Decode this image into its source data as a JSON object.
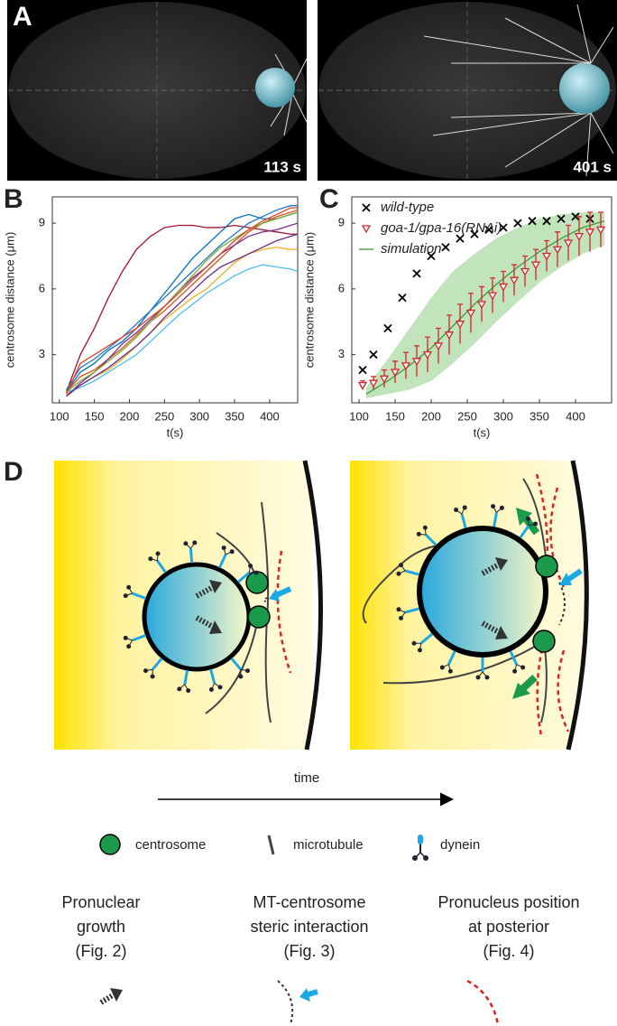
{
  "panels": {
    "a": "A",
    "b": "B",
    "c": "C",
    "d": "D"
  },
  "panel_a": {
    "timestamps": [
      "113 s",
      "401 s"
    ]
  },
  "chart_data": [
    {
      "type": "line",
      "x_label": "t(s)",
      "y_label": "centrosome distance (μm)",
      "x": [
        110,
        130,
        150,
        170,
        190,
        210,
        230,
        250,
        270,
        290,
        310,
        330,
        350,
        370,
        390,
        410,
        430,
        440
      ],
      "series": [
        {
          "color": "#a2142f",
          "values": [
            1.3,
            3.0,
            4.2,
            5.6,
            6.8,
            7.8,
            8.4,
            8.8,
            8.9,
            8.9,
            8.8,
            8.8,
            8.9,
            8.8,
            8.7,
            8.6,
            8.5,
            8.5
          ]
        },
        {
          "color": "#0072bd",
          "values": [
            1.3,
            2.2,
            2.6,
            3.2,
            3.6,
            4.2,
            5.0,
            5.8,
            6.6,
            7.4,
            8.0,
            8.6,
            9.2,
            9.4,
            9.2,
            9.2,
            9.4,
            9.5
          ]
        },
        {
          "color": "#d95319",
          "values": [
            1.3,
            2.0,
            2.3,
            2.8,
            3.3,
            3.9,
            4.5,
            5.0,
            5.6,
            6.2,
            6.8,
            7.4,
            8.0,
            8.6,
            9.0,
            9.3,
            9.5,
            9.6
          ]
        },
        {
          "color": "#edb120",
          "values": [
            1.2,
            1.6,
            2.0,
            2.3,
            2.8,
            3.4,
            4.0,
            4.6,
            5.1,
            5.6,
            6.0,
            6.6,
            7.2,
            7.6,
            7.8,
            7.9,
            7.8,
            7.8
          ]
        },
        {
          "color": "#7e2f8e",
          "values": [
            1.1,
            1.7,
            2.2,
            2.8,
            3.5,
            4.0,
            4.6,
            5.2,
            5.9,
            6.5,
            7.0,
            7.6,
            8.0,
            8.4,
            8.6,
            8.7,
            8.9,
            9.0
          ]
        },
        {
          "color": "#77ac30",
          "values": [
            1.3,
            1.8,
            2.2,
            2.7,
            3.2,
            3.8,
            4.5,
            5.2,
            5.9,
            6.6,
            7.3,
            7.9,
            8.3,
            8.7,
            9.0,
            9.2,
            9.4,
            9.5
          ]
        },
        {
          "color": "#4dbeee",
          "values": [
            1.3,
            1.5,
            1.8,
            2.2,
            2.6,
            3.0,
            3.6,
            4.2,
            4.8,
            5.3,
            5.8,
            6.2,
            6.6,
            6.9,
            7.1,
            7.0,
            6.9,
            6.8
          ]
        },
        {
          "color": "#1f77c4",
          "values": [
            1.4,
            2.4,
            2.8,
            3.3,
            3.8,
            4.4,
            5.0,
            5.6,
            6.2,
            6.8,
            7.4,
            8.0,
            8.5,
            9.0,
            9.3,
            9.6,
            9.8,
            9.8
          ]
        },
        {
          "color": "#e0402a",
          "values": [
            1.2,
            2.6,
            3.0,
            3.4,
            3.8,
            4.2,
            4.7,
            5.2,
            5.8,
            6.4,
            7.0,
            7.6,
            8.2,
            8.7,
            9.1,
            9.4,
            9.7,
            9.7
          ]
        },
        {
          "color": "#6a2a8a",
          "values": [
            1.1,
            1.6,
            2.0,
            2.4,
            2.9,
            3.4,
            4.0,
            4.7,
            5.3,
            5.9,
            6.5,
            7.0,
            7.3,
            7.6,
            7.9,
            8.2,
            8.4,
            8.5
          ]
        }
      ],
      "xlim": [
        90,
        440
      ],
      "ylim": [
        0.8,
        10.2
      ],
      "xticks": [
        100,
        150,
        200,
        250,
        300,
        350,
        400
      ],
      "yticks": [
        3,
        6,
        9
      ]
    },
    {
      "type": "scatter",
      "x_label": "t(s)",
      "y_label": "centrosome distance (μm)",
      "legend": "upper left",
      "series": [
        {
          "name": "wild-type",
          "color": "#000000",
          "marker": "x",
          "x": [
            105,
            120,
            140,
            160,
            180,
            200,
            220,
            240,
            260,
            280,
            300,
            320,
            340,
            360,
            380,
            400,
            420
          ],
          "values": [
            2.3,
            3.0,
            4.2,
            5.6,
            6.7,
            7.5,
            7.9,
            8.3,
            8.5,
            8.7,
            8.8,
            9.0,
            9.1,
            9.1,
            9.2,
            9.3,
            9.2
          ]
        },
        {
          "name": "goa-1/gpa-16(RNAi)",
          "color": "#d62728",
          "marker": "triangle-down",
          "x": [
            105,
            120,
            135,
            150,
            165,
            180,
            195,
            210,
            225,
            240,
            255,
            270,
            285,
            300,
            315,
            330,
            345,
            360,
            375,
            390,
            405,
            420,
            435
          ],
          "values": [
            1.6,
            1.7,
            1.9,
            2.2,
            2.5,
            2.7,
            3.0,
            3.4,
            3.9,
            4.4,
            4.9,
            5.3,
            5.7,
            6.1,
            6.4,
            6.8,
            7.1,
            7.5,
            7.8,
            8.1,
            8.4,
            8.6,
            8.7
          ],
          "errors": [
            0.2,
            0.3,
            0.4,
            0.5,
            0.6,
            0.7,
            0.8,
            0.8,
            0.9,
            0.9,
            0.9,
            0.8,
            0.8,
            0.7,
            0.7,
            0.7,
            0.7,
            0.7,
            0.8,
            0.8,
            0.9,
            0.9,
            0.8
          ]
        },
        {
          "name": "simulation",
          "color": "#3a9a3a",
          "band_color": "#a8d8a0",
          "marker": "none",
          "x": [
            110,
            140,
            170,
            200,
            230,
            260,
            290,
            320,
            350,
            380,
            410,
            440
          ],
          "values": [
            1.2,
            1.8,
            2.5,
            3.3,
            4.3,
            5.3,
            6.2,
            7.0,
            7.7,
            8.3,
            8.8,
            9.1
          ],
          "lower": [
            1.0,
            1.2,
            1.4,
            1.8,
            2.6,
            3.5,
            4.5,
            5.4,
            6.3,
            7.0,
            7.6,
            8.0
          ],
          "upper": [
            1.5,
            2.8,
            4.2,
            5.6,
            6.8,
            7.6,
            8.3,
            8.8,
            9.2,
            9.4,
            9.5,
            9.5
          ]
        }
      ],
      "xlim": [
        90,
        450
      ],
      "ylim": [
        0.8,
        10.2
      ],
      "xticks": [
        100,
        150,
        200,
        250,
        300,
        350,
        400
      ],
      "yticks": [
        3,
        6,
        9
      ]
    }
  ],
  "diagram": {
    "time_label": "time",
    "legend": [
      "centrosome",
      "microtubule",
      "dynein"
    ],
    "mechanisms": [
      [
        "Pronuclear",
        "growth",
        "(Fig. 2)"
      ],
      [
        "MT-centrosome",
        "steric interaction",
        "(Fig. 3)"
      ],
      [
        "Pronucleus position",
        "at posterior",
        "(Fig. 4)"
      ]
    ]
  }
}
